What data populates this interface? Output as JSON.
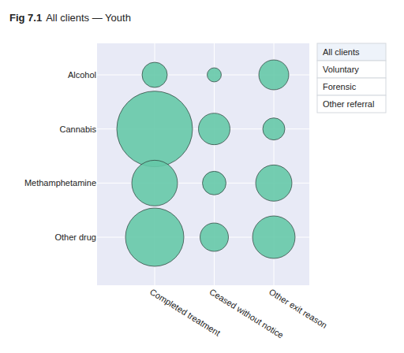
{
  "chart_data": {
    "type": "bubble",
    "title": "Fig 7.1",
    "subtitle": "All clients — Youth",
    "rows": [
      "Alcohol",
      "Cannabis",
      "Methamphetamine",
      "Other drug"
    ],
    "columns": [
      "Completed treatment",
      "Ceased without notice",
      "Other exit reason"
    ],
    "sizes": [
      [
        64,
        20,
        90
      ],
      [
        576,
        100,
        49
      ],
      [
        210,
        56,
        132
      ],
      [
        342,
        81,
        182
      ]
    ],
    "color": "#66c9a8",
    "grid": true,
    "buttons": [
      "All clients",
      "Voluntary",
      "Forensic",
      "Other referral"
    ]
  }
}
